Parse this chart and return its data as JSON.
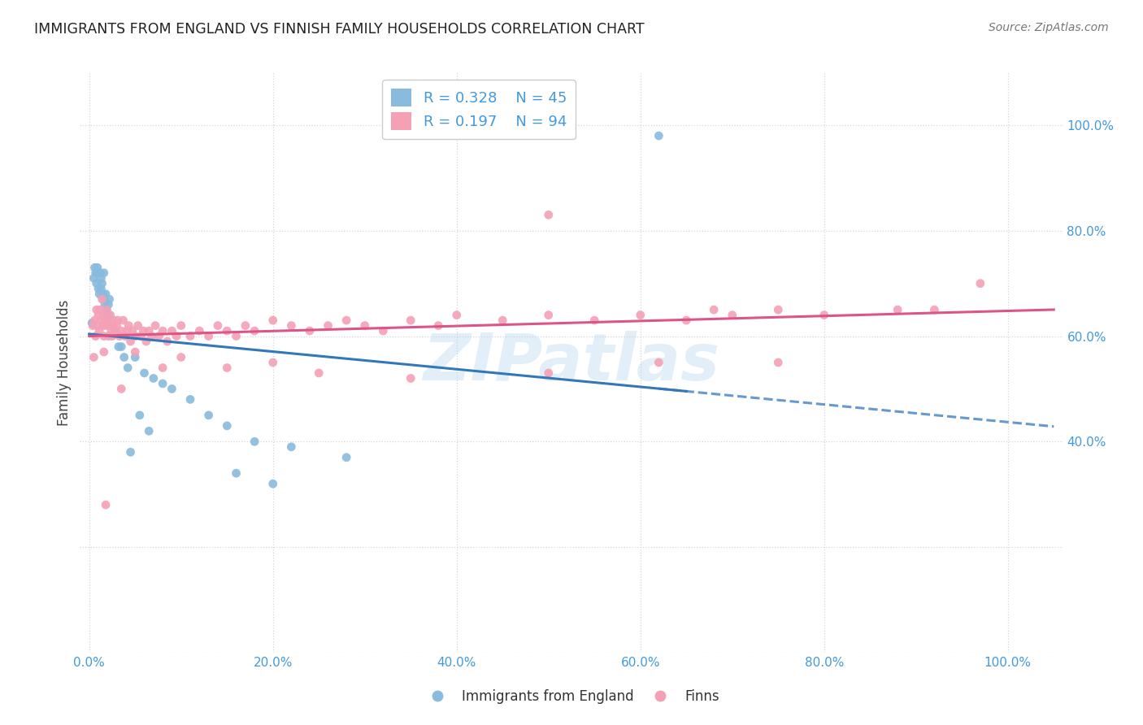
{
  "title": "IMMIGRANTS FROM ENGLAND VS FINNISH FAMILY HOUSEHOLDS CORRELATION CHART",
  "source": "Source: ZipAtlas.com",
  "ylabel": "Family Households",
  "legend_label1": "Immigrants from England",
  "legend_label2": "Finns",
  "legend_R1": "0.328",
  "legend_N1": "45",
  "legend_R2": "0.197",
  "legend_N2": "94",
  "color_blue": "#88bbdd",
  "color_pink": "#f4a0b5",
  "color_line_blue": "#3377bb",
  "color_line_pink": "#dd5588",
  "color_title": "#222222",
  "color_source": "#777777",
  "color_axis": "#4499dd",
  "color_watermark": "#b8d8ee",
  "blue_x": [
    0.003,
    0.005,
    0.006,
    0.007,
    0.008,
    0.008,
    0.009,
    0.01,
    0.011,
    0.012,
    0.013,
    0.013,
    0.014,
    0.015,
    0.016,
    0.016,
    0.017,
    0.018,
    0.019,
    0.02,
    0.021,
    0.022,
    0.025,
    0.028,
    0.032,
    0.035,
    0.038,
    0.042,
    0.05,
    0.06,
    0.07,
    0.08,
    0.09,
    0.11,
    0.13,
    0.15,
    0.18,
    0.22,
    0.28,
    0.045,
    0.055,
    0.065,
    0.16,
    0.2,
    0.62
  ],
  "blue_y": [
    0.625,
    0.71,
    0.73,
    0.72,
    0.7,
    0.72,
    0.73,
    0.69,
    0.68,
    0.72,
    0.71,
    0.69,
    0.7,
    0.68,
    0.72,
    0.67,
    0.66,
    0.68,
    0.65,
    0.64,
    0.66,
    0.67,
    0.62,
    0.61,
    0.58,
    0.58,
    0.56,
    0.54,
    0.56,
    0.53,
    0.52,
    0.51,
    0.5,
    0.48,
    0.45,
    0.43,
    0.4,
    0.39,
    0.37,
    0.38,
    0.45,
    0.42,
    0.34,
    0.32,
    0.98
  ],
  "pink_x": [
    0.004,
    0.005,
    0.006,
    0.007,
    0.008,
    0.009,
    0.01,
    0.011,
    0.012,
    0.013,
    0.014,
    0.015,
    0.015,
    0.016,
    0.017,
    0.018,
    0.019,
    0.02,
    0.021,
    0.022,
    0.023,
    0.024,
    0.025,
    0.026,
    0.027,
    0.028,
    0.03,
    0.031,
    0.033,
    0.035,
    0.037,
    0.039,
    0.041,
    0.043,
    0.045,
    0.047,
    0.05,
    0.053,
    0.056,
    0.059,
    0.062,
    0.065,
    0.068,
    0.072,
    0.076,
    0.08,
    0.085,
    0.09,
    0.095,
    0.1,
    0.11,
    0.12,
    0.13,
    0.14,
    0.15,
    0.16,
    0.17,
    0.18,
    0.2,
    0.22,
    0.24,
    0.26,
    0.28,
    0.3,
    0.32,
    0.35,
    0.38,
    0.4,
    0.45,
    0.5,
    0.55,
    0.6,
    0.65,
    0.68,
    0.7,
    0.75,
    0.8,
    0.88,
    0.92,
    0.97,
    0.016,
    0.035,
    0.05,
    0.08,
    0.1,
    0.15,
    0.2,
    0.25,
    0.35,
    0.5,
    0.62,
    0.75,
    0.5,
    0.018
  ],
  "pink_y": [
    0.62,
    0.56,
    0.63,
    0.6,
    0.65,
    0.62,
    0.64,
    0.61,
    0.65,
    0.63,
    0.67,
    0.62,
    0.64,
    0.6,
    0.63,
    0.62,
    0.65,
    0.63,
    0.6,
    0.62,
    0.64,
    0.61,
    0.6,
    0.62,
    0.63,
    0.61,
    0.62,
    0.63,
    0.6,
    0.61,
    0.63,
    0.6,
    0.61,
    0.62,
    0.59,
    0.61,
    0.6,
    0.62,
    0.6,
    0.61,
    0.59,
    0.61,
    0.6,
    0.62,
    0.6,
    0.61,
    0.59,
    0.61,
    0.6,
    0.62,
    0.6,
    0.61,
    0.6,
    0.62,
    0.61,
    0.6,
    0.62,
    0.61,
    0.63,
    0.62,
    0.61,
    0.62,
    0.63,
    0.62,
    0.61,
    0.63,
    0.62,
    0.64,
    0.63,
    0.64,
    0.63,
    0.64,
    0.63,
    0.65,
    0.64,
    0.65,
    0.64,
    0.65,
    0.65,
    0.7,
    0.57,
    0.5,
    0.57,
    0.54,
    0.56,
    0.54,
    0.55,
    0.53,
    0.52,
    0.53,
    0.55,
    0.55,
    0.83,
    0.28
  ]
}
